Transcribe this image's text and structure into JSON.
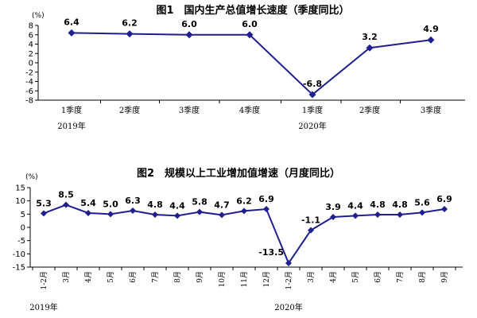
{
  "chart_data": [
    {
      "type": "line",
      "title": "图1　国内生产总值增长速度（季度同比）",
      "unit": "(%)",
      "categories": [
        "1季度",
        "2季度",
        "3季度",
        "4季度",
        "1季度",
        "2季度",
        "3季度"
      ],
      "groups": [
        {
          "label": "2019年",
          "start": 0
        },
        {
          "label": "2020年",
          "start": 4
        }
      ],
      "values": [
        6.4,
        6.2,
        6.0,
        6.0,
        -6.8,
        3.2,
        4.9
      ],
      "data_labels": [
        "6.4",
        "6.2",
        "6.0",
        "6.0",
        "-6.8",
        "3.2",
        "4.9"
      ],
      "yticks": [
        "8",
        "6",
        "4",
        "2",
        "0",
        "-2",
        "-4",
        "-6",
        "-8"
      ],
      "ylim": [
        -8,
        8
      ],
      "grid": false,
      "line_color": "#1f1f8f"
    },
    {
      "type": "line",
      "title": "图2　规模以上工业增加值增速（月度同比）",
      "unit": "(%)",
      "categories": [
        "1-2月",
        "3月",
        "4月",
        "5月",
        "6月",
        "7月",
        "8月",
        "9月",
        "10月",
        "11月",
        "12月",
        "1-2月",
        "3月",
        "4月",
        "5月",
        "6月",
        "7月",
        "8月",
        "9月"
      ],
      "groups": [
        {
          "label": "2019年",
          "start": 0
        },
        {
          "label": "2020年",
          "start": 11
        }
      ],
      "values": [
        5.3,
        8.5,
        5.4,
        5.0,
        6.3,
        4.8,
        4.4,
        5.8,
        4.7,
        6.2,
        6.9,
        -13.5,
        -1.1,
        3.9,
        4.4,
        4.8,
        4.8,
        5.6,
        6.9
      ],
      "data_labels": [
        "5.3",
        "8.5",
        "5.4",
        "5.0",
        "6.3",
        "4.8",
        "4.4",
        "5.8",
        "4.7",
        "6.2",
        "6.9",
        "-13.5",
        "-1.1",
        "3.9",
        "4.4",
        "4.8",
        "4.8",
        "5.6",
        "6.9"
      ],
      "yticks": [
        "15",
        "10",
        "5",
        "0",
        "-5",
        "-10",
        "-15"
      ],
      "ylim": [
        -15,
        15
      ],
      "grid": false,
      "line_color": "#1f1f8f"
    }
  ]
}
